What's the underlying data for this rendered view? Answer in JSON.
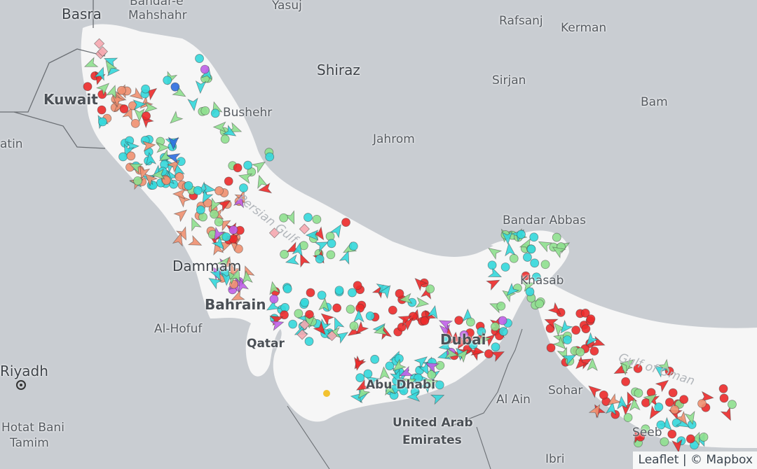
{
  "map": {
    "colors": {
      "land": "#c9cdd2",
      "sea": "#f6f6f6",
      "border": "#6b6f74"
    },
    "marker_colors": {
      "cyan": "#34d8dc",
      "green": "#8fe08f",
      "red": "#ec2a2a",
      "salmon": "#f09070",
      "pink": "#f6a8b0",
      "purple": "#c060e8",
      "blue": "#2d6ee0",
      "yellow": "#f2c230"
    },
    "labels": [
      {
        "id": "basra",
        "text": "Basra"
      },
      {
        "id": "bandar",
        "text": "Bandar-e"
      },
      {
        "id": "mahshahr",
        "text": "Mahshahr"
      },
      {
        "id": "yasuj",
        "text": "Yasuj"
      },
      {
        "id": "rafsanj",
        "text": "Rafsanj"
      },
      {
        "id": "kerman",
        "text": "Kerman"
      },
      {
        "id": "shiraz",
        "text": "Shiraz"
      },
      {
        "id": "sirjan",
        "text": "Sirjan"
      },
      {
        "id": "kuwait",
        "text": "Kuwait"
      },
      {
        "id": "bushehr",
        "text": "Bushehr"
      },
      {
        "id": "bam",
        "text": "Bam"
      },
      {
        "id": "atin",
        "text": "atin"
      },
      {
        "id": "jahrom",
        "text": "Jahrom"
      },
      {
        "id": "bandarabbas",
        "text": "Bandar Abbas"
      },
      {
        "id": "khasab",
        "text": "Khasab"
      },
      {
        "id": "dammam",
        "text": "Dammam"
      },
      {
        "id": "bahrain",
        "text": "Bahrain"
      },
      {
        "id": "hofuf",
        "text": "Al-Hofuf"
      },
      {
        "id": "qatar",
        "text": "Qatar"
      },
      {
        "id": "dubai",
        "text": "Dubai"
      },
      {
        "id": "abudhabi",
        "text": "Abu Dhabi"
      },
      {
        "id": "riyadh",
        "text": "Riyadh"
      },
      {
        "id": "hotat1",
        "text": "Hotat Bani"
      },
      {
        "id": "hotat2",
        "text": "Tamim"
      },
      {
        "id": "alain",
        "text": "Al Ain"
      },
      {
        "id": "uae1",
        "text": "United Arab"
      },
      {
        "id": "uae2",
        "text": "Emirates"
      },
      {
        "id": "ibri",
        "text": "Ibri"
      },
      {
        "id": "sohar",
        "text": "Sohar"
      },
      {
        "id": "seeb",
        "text": "Seeb"
      },
      {
        "id": "persiangulf",
        "text": "Persian Gulf"
      },
      {
        "id": "gulfofoman",
        "text": "Gulf of Oman"
      }
    ]
  },
  "attribution": {
    "leaflet": "Leaflet",
    "separator": " | ",
    "mapbox": "© Mapbox"
  }
}
